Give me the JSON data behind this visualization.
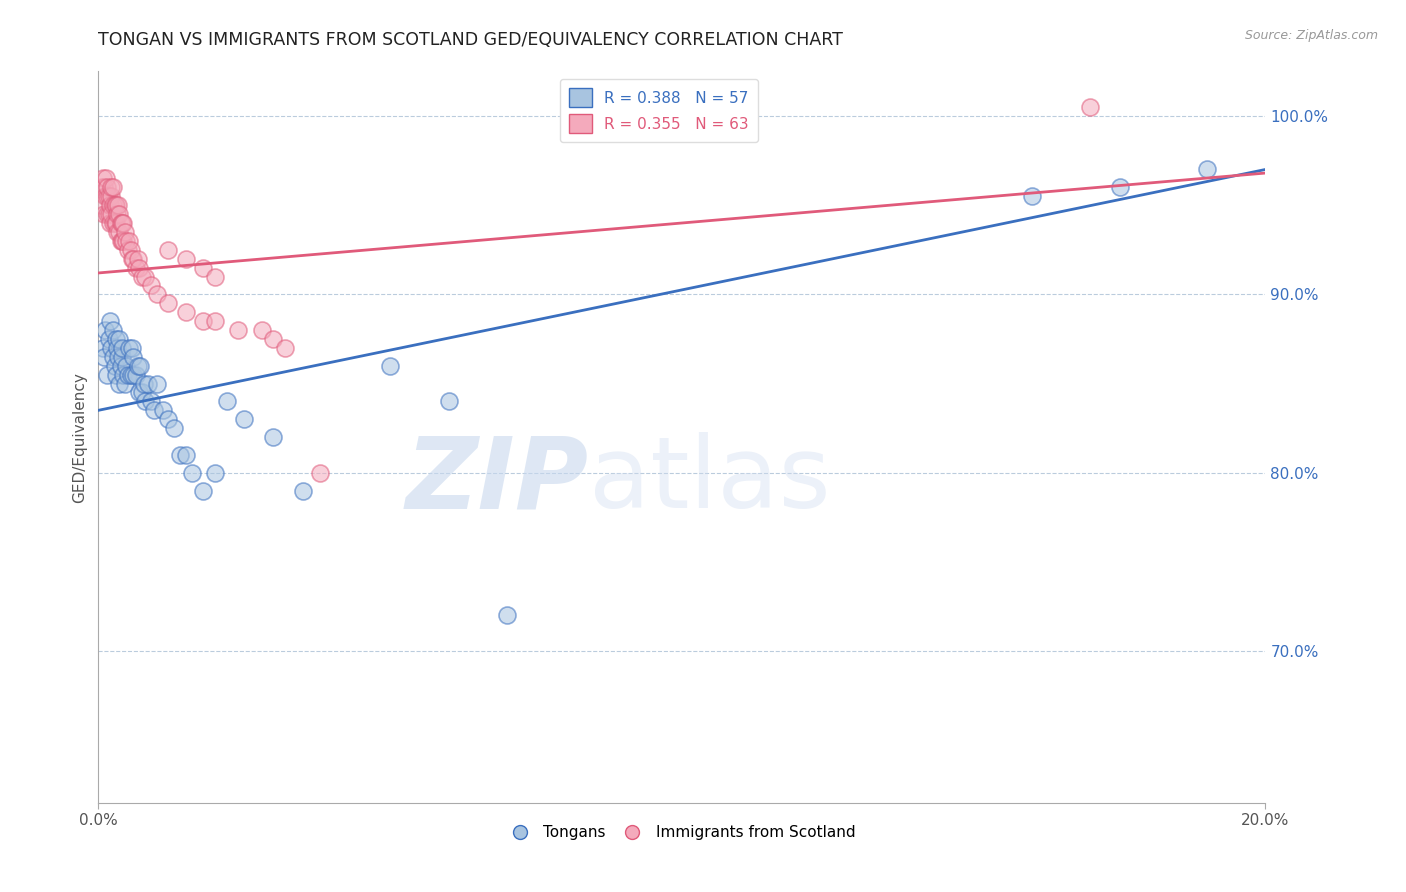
{
  "title": "TONGAN VS IMMIGRANTS FROM SCOTLAND GED/EQUIVALENCY CORRELATION CHART",
  "source": "Source: ZipAtlas.com",
  "ylabel": "GED/Equivalency",
  "x_min": 0.0,
  "x_max": 0.2,
  "y_min": 0.615,
  "y_max": 1.025,
  "y_ticks": [
    0.7,
    0.8,
    0.9,
    1.0
  ],
  "y_tick_labels": [
    "70.0%",
    "80.0%",
    "90.0%",
    "100.0%"
  ],
  "x_ticks": [
    0.0,
    0.2
  ],
  "x_tick_labels": [
    "0.0%",
    "20.0%"
  ],
  "blue_color": "#A8C4E0",
  "pink_color": "#F4AABC",
  "blue_line_color": "#3A6FBF",
  "pink_line_color": "#E05A7A",
  "legend_blue_label": "R = 0.388   N = 57",
  "legend_pink_label": "R = 0.355   N = 63",
  "tongans_label": "Tongans",
  "scotland_label": "Immigrants from Scotland",
  "background_color": "#FFFFFF",
  "watermark_zip": "ZIP",
  "watermark_atlas": "atlas",
  "blue_x": [
    0.0008,
    0.001,
    0.0012,
    0.0015,
    0.0018,
    0.002,
    0.0022,
    0.0025,
    0.0025,
    0.0028,
    0.003,
    0.003,
    0.0032,
    0.0033,
    0.0035,
    0.0035,
    0.0038,
    0.004,
    0.004,
    0.0042,
    0.0045,
    0.0048,
    0.005,
    0.0052,
    0.0055,
    0.0058,
    0.006,
    0.006,
    0.0065,
    0.0068,
    0.007,
    0.0072,
    0.0075,
    0.0078,
    0.008,
    0.0085,
    0.009,
    0.0095,
    0.01,
    0.011,
    0.012,
    0.013,
    0.014,
    0.015,
    0.016,
    0.018,
    0.02,
    0.022,
    0.025,
    0.03,
    0.035,
    0.05,
    0.06,
    0.07,
    0.16,
    0.175,
    0.19
  ],
  "blue_y": [
    0.87,
    0.865,
    0.88,
    0.855,
    0.875,
    0.885,
    0.87,
    0.865,
    0.88,
    0.86,
    0.875,
    0.855,
    0.87,
    0.865,
    0.85,
    0.875,
    0.86,
    0.865,
    0.87,
    0.855,
    0.85,
    0.86,
    0.855,
    0.87,
    0.855,
    0.87,
    0.855,
    0.865,
    0.855,
    0.86,
    0.845,
    0.86,
    0.845,
    0.85,
    0.84,
    0.85,
    0.84,
    0.835,
    0.85,
    0.835,
    0.83,
    0.825,
    0.81,
    0.81,
    0.8,
    0.79,
    0.8,
    0.84,
    0.83,
    0.82,
    0.79,
    0.86,
    0.84,
    0.72,
    0.955,
    0.96,
    0.97
  ],
  "pink_x": [
    0.0005,
    0.0005,
    0.0008,
    0.001,
    0.001,
    0.0012,
    0.0013,
    0.0015,
    0.0015,
    0.0015,
    0.0018,
    0.0018,
    0.002,
    0.002,
    0.0022,
    0.0022,
    0.0022,
    0.0025,
    0.0025,
    0.0025,
    0.0028,
    0.0028,
    0.003,
    0.003,
    0.0032,
    0.0032,
    0.0033,
    0.0035,
    0.0035,
    0.0038,
    0.0038,
    0.004,
    0.004,
    0.0042,
    0.0042,
    0.0045,
    0.0048,
    0.005,
    0.0052,
    0.0055,
    0.0058,
    0.006,
    0.0065,
    0.0068,
    0.007,
    0.0075,
    0.008,
    0.009,
    0.01,
    0.012,
    0.015,
    0.018,
    0.02,
    0.024,
    0.028,
    0.03,
    0.032,
    0.038,
    0.012,
    0.015,
    0.018,
    0.02,
    0.17
  ],
  "pink_y": [
    0.95,
    0.96,
    0.965,
    0.945,
    0.96,
    0.955,
    0.965,
    0.945,
    0.955,
    0.96,
    0.945,
    0.955,
    0.94,
    0.95,
    0.945,
    0.955,
    0.96,
    0.94,
    0.95,
    0.96,
    0.94,
    0.95,
    0.94,
    0.95,
    0.935,
    0.945,
    0.95,
    0.935,
    0.945,
    0.93,
    0.94,
    0.93,
    0.94,
    0.93,
    0.94,
    0.935,
    0.93,
    0.925,
    0.93,
    0.925,
    0.92,
    0.92,
    0.915,
    0.92,
    0.915,
    0.91,
    0.91,
    0.905,
    0.9,
    0.895,
    0.89,
    0.885,
    0.885,
    0.88,
    0.88,
    0.875,
    0.87,
    0.8,
    0.925,
    0.92,
    0.915,
    0.91,
    1.005
  ],
  "blue_trend_x0": 0.0,
  "blue_trend_y0": 0.835,
  "blue_trend_x1": 0.2,
  "blue_trend_y1": 0.97,
  "pink_trend_x0": 0.0,
  "pink_trend_y0": 0.912,
  "pink_trend_x1": 0.2,
  "pink_trend_y1": 0.968
}
